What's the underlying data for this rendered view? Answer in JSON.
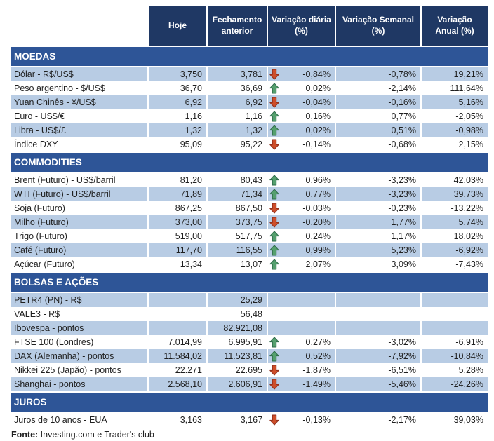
{
  "header": {
    "columns": [
      "Hoje",
      "Fechamento\nanterior",
      "Variação diária\n(%)",
      "Variação Semanal\n(%)",
      "Variação\nAnual (%)"
    ]
  },
  "sections": [
    {
      "title": "MOEDAS",
      "start_shaded": true,
      "rows": [
        {
          "label": "Dólar - R$/US$",
          "hoje": "3,750",
          "fechamento": "3,781",
          "arrow": "down",
          "diaria": "-0,84%",
          "semanal": "-0,78%",
          "anual": "19,21%"
        },
        {
          "label": "Peso argentino - $/US$",
          "hoje": "36,70",
          "fechamento": "36,69",
          "arrow": "up",
          "diaria": "0,02%",
          "semanal": "-2,14%",
          "anual": "111,64%"
        },
        {
          "label": "Yuan Chinês - ¥/US$",
          "hoje": "6,92",
          "fechamento": "6,92",
          "arrow": "down",
          "diaria": "-0,04%",
          "semanal": "-0,16%",
          "anual": "5,16%"
        },
        {
          "label": "Euro - US$/€",
          "hoje": "1,16",
          "fechamento": "1,16",
          "arrow": "up",
          "diaria": "0,16%",
          "semanal": "0,77%",
          "anual": "-2,05%"
        },
        {
          "label": "Libra - US$/£",
          "hoje": "1,32",
          "fechamento": "1,32",
          "arrow": "up",
          "diaria": "0,02%",
          "semanal": "0,51%",
          "anual": "-0,98%"
        },
        {
          "label": "Índice DXY",
          "hoje": "95,09",
          "fechamento": "95,22",
          "arrow": "down",
          "diaria": "-0,14%",
          "semanal": "-0,68%",
          "anual": "2,15%"
        }
      ]
    },
    {
      "title": "COMMODITIES",
      "start_shaded": false,
      "rows": [
        {
          "label": "Brent (Futuro) - US$/barril",
          "hoje": "81,20",
          "fechamento": "80,43",
          "arrow": "up",
          "diaria": "0,96%",
          "semanal": "-3,23%",
          "anual": "42,03%"
        },
        {
          "label": "WTI (Futuro) - US$/barril",
          "hoje": "71,89",
          "fechamento": "71,34",
          "arrow": "up",
          "diaria": "0,77%",
          "semanal": "-3,23%",
          "anual": "39,73%"
        },
        {
          "label": "Soja (Futuro)",
          "hoje": "867,25",
          "fechamento": "867,50",
          "arrow": "down",
          "diaria": "-0,03%",
          "semanal": "-0,23%",
          "anual": "-13,22%"
        },
        {
          "label": "Milho (Futuro)",
          "hoje": "373,00",
          "fechamento": "373,75",
          "arrow": "down",
          "diaria": "-0,20%",
          "semanal": "1,77%",
          "anual": "5,74%"
        },
        {
          "label": "Trigo (Futuro)",
          "hoje": "519,00",
          "fechamento": "517,75",
          "arrow": "up",
          "diaria": "0,24%",
          "semanal": "1,17%",
          "anual": "18,02%"
        },
        {
          "label": "Café (Futuro)",
          "hoje": "117,70",
          "fechamento": "116,55",
          "arrow": "up",
          "diaria": "0,99%",
          "semanal": "5,23%",
          "anual": "-6,92%"
        },
        {
          "label": "Açúcar (Futuro)",
          "hoje": "13,34",
          "fechamento": "13,07",
          "arrow": "up",
          "diaria": "2,07%",
          "semanal": "3,09%",
          "anual": "-7,43%"
        }
      ]
    },
    {
      "title": "BOLSAS E AÇÕES",
      "start_shaded": true,
      "rows": [
        {
          "label": "PETR4 (PN) - R$",
          "hoje": "",
          "fechamento": "25,29",
          "arrow": "none",
          "diaria": "",
          "semanal": "",
          "anual": ""
        },
        {
          "label": "VALE3 - R$",
          "hoje": "",
          "fechamento": "56,48",
          "arrow": "none",
          "diaria": "",
          "semanal": "",
          "anual": ""
        },
        {
          "label": "Ibovespa - pontos",
          "hoje": "",
          "fechamento": "82.921,08",
          "arrow": "none",
          "diaria": "",
          "semanal": "",
          "anual": ""
        },
        {
          "label": "FTSE 100 (Londres)",
          "hoje": "7.014,99",
          "fechamento": "6.995,91",
          "arrow": "up",
          "diaria": "0,27%",
          "semanal": "-3,02%",
          "anual": "-6,91%"
        },
        {
          "label": "DAX (Alemanha) - pontos",
          "hoje": "11.584,02",
          "fechamento": "11.523,81",
          "arrow": "up",
          "diaria": "0,52%",
          "semanal": "-7,92%",
          "anual": "-10,84%"
        },
        {
          "label": "Nikkei 225 (Japão) - pontos",
          "hoje": "22.271",
          "fechamento": "22.695",
          "arrow": "down",
          "diaria": "-1,87%",
          "semanal": "-6,51%",
          "anual": "5,28%"
        },
        {
          "label": "Shanghai - pontos",
          "hoje": "2.568,10",
          "fechamento": "2.606,91",
          "arrow": "down",
          "diaria": "-1,49%",
          "semanal": "-5,46%",
          "anual": "-24,26%"
        }
      ]
    },
    {
      "title": "JUROS",
      "start_shaded": false,
      "rows": [
        {
          "label": "Juros de 10 anos - EUA",
          "hoje": "3,163",
          "fechamento": "3,167",
          "arrow": "down",
          "diaria": "-0,13%",
          "semanal": "-2,17%",
          "anual": "39,03%"
        }
      ]
    }
  ],
  "footer": {
    "source_label": "Fonte:",
    "source_text": " Investing.com e Trader's club"
  },
  "colors": {
    "header_bg": "#1F3864",
    "section_bg": "#2E5597",
    "row_shaded": "#B8CCE4",
    "row_plain": "#FFFFFF",
    "text": "#1F1F1F",
    "arrow_up_fill": "#55A06E",
    "arrow_up_border": "#2E6B4A",
    "arrow_down_fill": "#CE4E2A",
    "arrow_down_border": "#8F2F1B"
  }
}
